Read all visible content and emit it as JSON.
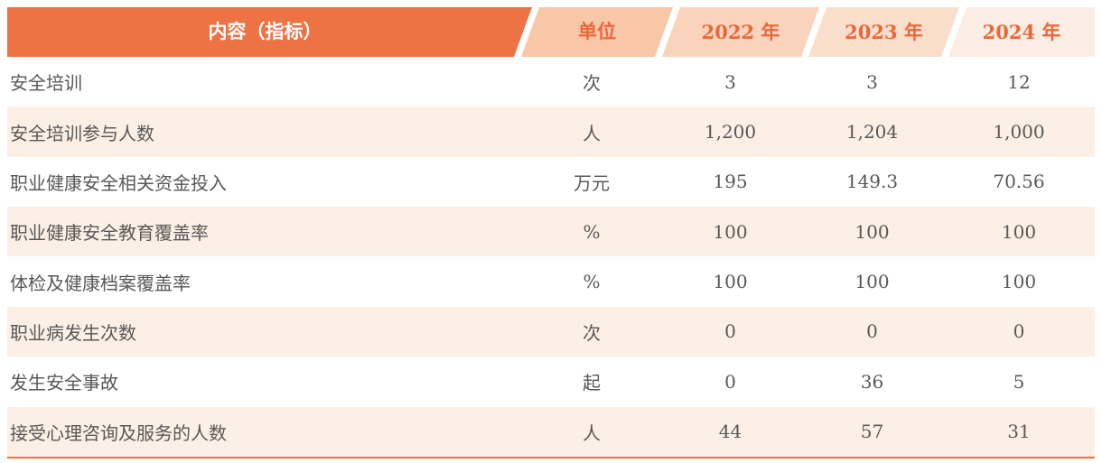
{
  "colors": {
    "accent": "#ED7244",
    "header-text": "#E8683C",
    "unit-bg": "#F8C7A8",
    "y2022-bg": "#F9D3BB",
    "y2023-bg": "#FADECC",
    "y2024-bg": "#FBEDE3",
    "row-alt": "#FCF0E6",
    "body-text": "#595757"
  },
  "table": {
    "header": {
      "indicator": "内容（指标）",
      "unit": "单位",
      "y2022": "2022 年",
      "y2023": "2023 年",
      "y2024": "2024 年"
    },
    "rows": [
      {
        "indicator": "安全培训",
        "unit": "次",
        "values": [
          "3",
          "3",
          "12"
        ]
      },
      {
        "indicator": "安全培训参与人数",
        "unit": "人",
        "values": [
          "1,200",
          "1,204",
          "1,000"
        ]
      },
      {
        "indicator": "职业健康安全相关资金投入",
        "unit": "万元",
        "values": [
          "195",
          "149.3",
          "70.56"
        ]
      },
      {
        "indicator": "职业健康安全教育覆盖率",
        "unit": "%",
        "values": [
          "100",
          "100",
          "100"
        ]
      },
      {
        "indicator": "体检及健康档案覆盖率",
        "unit": "%",
        "values": [
          "100",
          "100",
          "100"
        ]
      },
      {
        "indicator": "职业病发生次数",
        "unit": "次",
        "values": [
          "0",
          "0",
          "0"
        ]
      },
      {
        "indicator": "发生安全事故",
        "unit": "起",
        "values": [
          "0",
          "36",
          "5"
        ]
      },
      {
        "indicator": "接受心理咨询及服务的人数",
        "unit": "人",
        "values": [
          "44",
          "57",
          "31"
        ]
      }
    ]
  }
}
